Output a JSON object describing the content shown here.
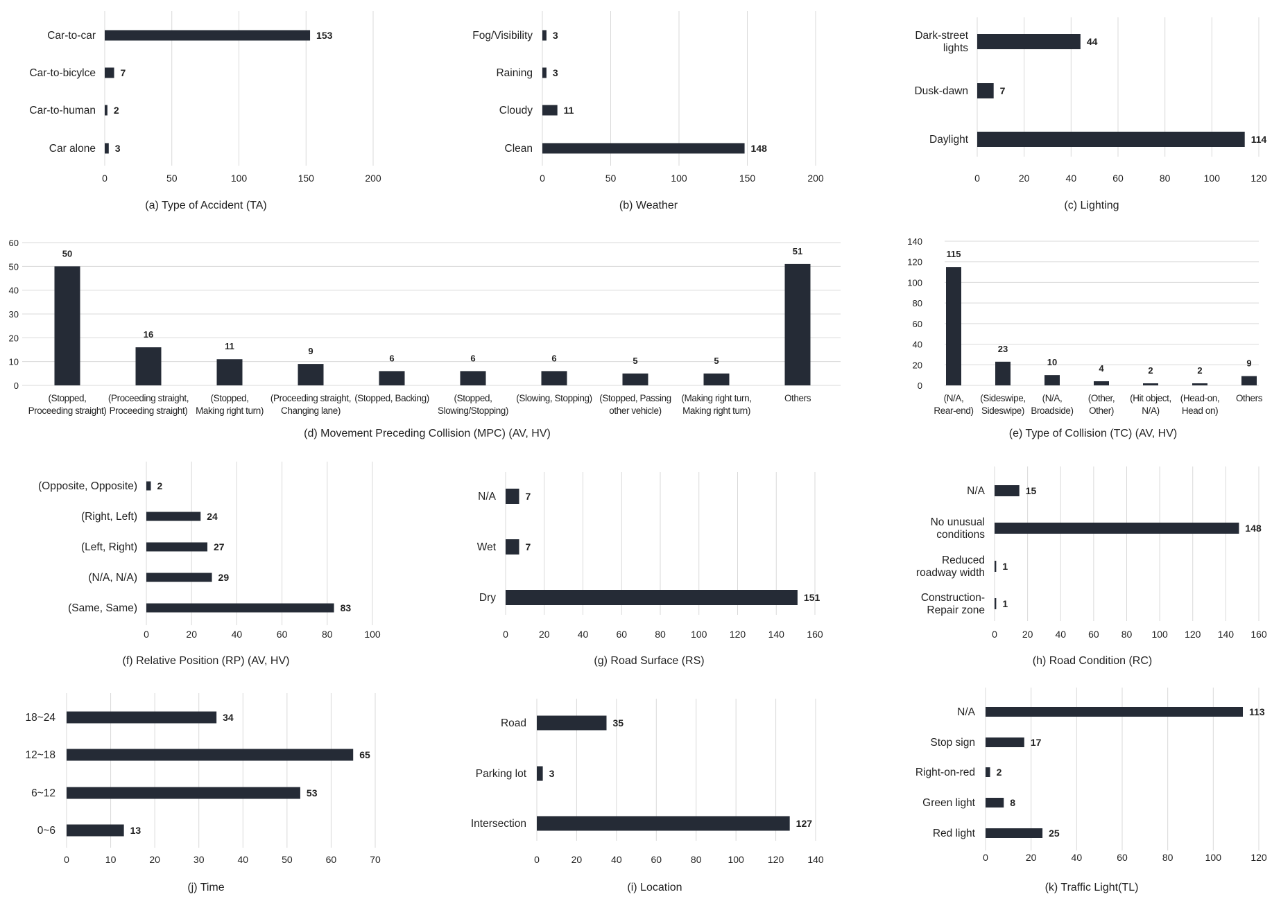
{
  "colors": {
    "bar": "#252b36",
    "grid": "#d9d9d9",
    "text": "#222222"
  },
  "chart_data": [
    {
      "id": "ta",
      "type": "bar",
      "orientation": "horizontal",
      "title": "(a) Type of Accident (TA)",
      "categories": [
        [
          "Car-to-car"
        ],
        [
          "Car-to-bicylce"
        ],
        [
          "Car-to-human"
        ],
        [
          "Car alone"
        ]
      ],
      "values": [
        153,
        7,
        2,
        3
      ],
      "ticks": [
        0,
        50,
        100,
        150,
        200
      ],
      "xlim": [
        0,
        200
      ]
    },
    {
      "id": "weather",
      "type": "bar",
      "orientation": "horizontal",
      "title": "(b) Weather",
      "categories": [
        [
          "Fog/Visibility"
        ],
        [
          "Raining"
        ],
        [
          "Cloudy"
        ],
        [
          "Clean"
        ]
      ],
      "values": [
        3,
        3,
        11,
        148
      ],
      "ticks": [
        0,
        50,
        100,
        150,
        200
      ],
      "xlim": [
        0,
        200
      ]
    },
    {
      "id": "lighting",
      "type": "bar",
      "orientation": "horizontal",
      "title": "(c) Lighting",
      "categories": [
        [
          "Dark-street",
          "lights"
        ],
        [
          "Dusk-dawn"
        ],
        [
          "Daylight"
        ]
      ],
      "values": [
        44,
        7,
        114
      ],
      "ticks": [
        0,
        20,
        40,
        60,
        80,
        100,
        120
      ],
      "xlim": [
        0,
        120
      ]
    },
    {
      "id": "mpc",
      "type": "bar",
      "orientation": "vertical",
      "title": "(d) Movement Preceding Collision (MPC) (AV, HV)",
      "categories": [
        [
          "(Stopped,",
          "Proceeding straight)"
        ],
        [
          "(Proceeding straight,",
          "Proceeding straight)"
        ],
        [
          "(Stopped,",
          "Making right turn)"
        ],
        [
          "(Proceeding straight,",
          "Changing lane)"
        ],
        [
          "(Stopped, Backing)"
        ],
        [
          "(Stopped,",
          "Slowing/Stopping)"
        ],
        [
          "(Slowing, Stopping)"
        ],
        [
          "(Stopped, Passing",
          "other vehicle)"
        ],
        [
          "(Making right turn,",
          "Making right turn)"
        ],
        [
          "Others"
        ]
      ],
      "values": [
        50,
        16,
        11,
        9,
        6,
        6,
        6,
        5,
        5,
        51
      ],
      "ticks": [
        0,
        10,
        20,
        30,
        40,
        50,
        60
      ],
      "ylim": [
        0,
        60
      ]
    },
    {
      "id": "tc",
      "type": "bar",
      "orientation": "vertical",
      "title": "(e) Type of Collision (TC) (AV, HV)",
      "categories": [
        [
          "(N/A,",
          "Rear-end)"
        ],
        [
          "(Sideswipe,",
          "Sideswipe)"
        ],
        [
          "(N/A,",
          "Broadside)"
        ],
        [
          "(Other,",
          "Other)"
        ],
        [
          "(Hit object,",
          "N/A)"
        ],
        [
          "(Head-on,",
          "Head on)"
        ],
        [
          "Others"
        ]
      ],
      "values": [
        115,
        23,
        10,
        4,
        2,
        2,
        9
      ],
      "ticks": [
        0,
        20,
        40,
        60,
        80,
        100,
        120,
        140
      ],
      "ylim": [
        0,
        140
      ]
    },
    {
      "id": "rp",
      "type": "bar",
      "orientation": "horizontal",
      "title": "(f) Relative Position (RP) (AV, HV)",
      "categories": [
        [
          "(Opposite, Opposite)"
        ],
        [
          "(Right, Left)"
        ],
        [
          "(Left, Right)"
        ],
        [
          "(N/A, N/A)"
        ],
        [
          "(Same, Same)"
        ]
      ],
      "values": [
        2,
        24,
        27,
        29,
        83
      ],
      "ticks": [
        0,
        20,
        40,
        60,
        80,
        100
      ],
      "xlim": [
        0,
        100
      ]
    },
    {
      "id": "rs",
      "type": "bar",
      "orientation": "horizontal",
      "title": "(g) Road Surface (RS)",
      "categories": [
        [
          "N/A"
        ],
        [
          "Wet"
        ],
        [
          "Dry"
        ]
      ],
      "values": [
        7,
        7,
        151
      ],
      "ticks": [
        0,
        20,
        40,
        60,
        80,
        100,
        120,
        140,
        160
      ],
      "xlim": [
        0,
        160
      ]
    },
    {
      "id": "rc",
      "type": "bar",
      "orientation": "horizontal",
      "title": "(h) Road Condition (RC)",
      "categories": [
        [
          "N/A"
        ],
        [
          "No unusual",
          "conditions"
        ],
        [
          "Reduced",
          "roadway width"
        ],
        [
          "Construction-",
          "Repair zone"
        ]
      ],
      "values": [
        15,
        148,
        1,
        1
      ],
      "ticks": [
        0,
        20,
        40,
        60,
        80,
        100,
        120,
        140,
        160
      ],
      "xlim": [
        0,
        160
      ]
    },
    {
      "id": "time",
      "type": "bar",
      "orientation": "horizontal",
      "title": "(j) Time",
      "categories": [
        [
          "18~24"
        ],
        [
          "12~18"
        ],
        [
          "6~12"
        ],
        [
          "0~6"
        ]
      ],
      "values": [
        34,
        65,
        53,
        13
      ],
      "ticks": [
        0,
        10,
        20,
        30,
        40,
        50,
        60,
        70
      ],
      "xlim": [
        0,
        70
      ]
    },
    {
      "id": "location",
      "type": "bar",
      "orientation": "horizontal",
      "title": "(i) Location",
      "categories": [
        [
          "Road"
        ],
        [
          "Parking lot"
        ],
        [
          "Intersection"
        ]
      ],
      "values": [
        35,
        3,
        127
      ],
      "ticks": [
        0,
        20,
        40,
        60,
        80,
        100,
        120,
        140
      ],
      "xlim": [
        0,
        140
      ]
    },
    {
      "id": "tl",
      "type": "bar",
      "orientation": "horizontal",
      "title": "(k) Traffic Light(TL)",
      "categories": [
        [
          "N/A"
        ],
        [
          "Stop sign"
        ],
        [
          "Right-on-red"
        ],
        [
          "Green light"
        ],
        [
          "Red light"
        ]
      ],
      "values": [
        113,
        17,
        2,
        8,
        25
      ],
      "ticks": [
        0,
        20,
        40,
        60,
        80,
        100,
        120
      ],
      "xlim": [
        0,
        120
      ]
    }
  ]
}
